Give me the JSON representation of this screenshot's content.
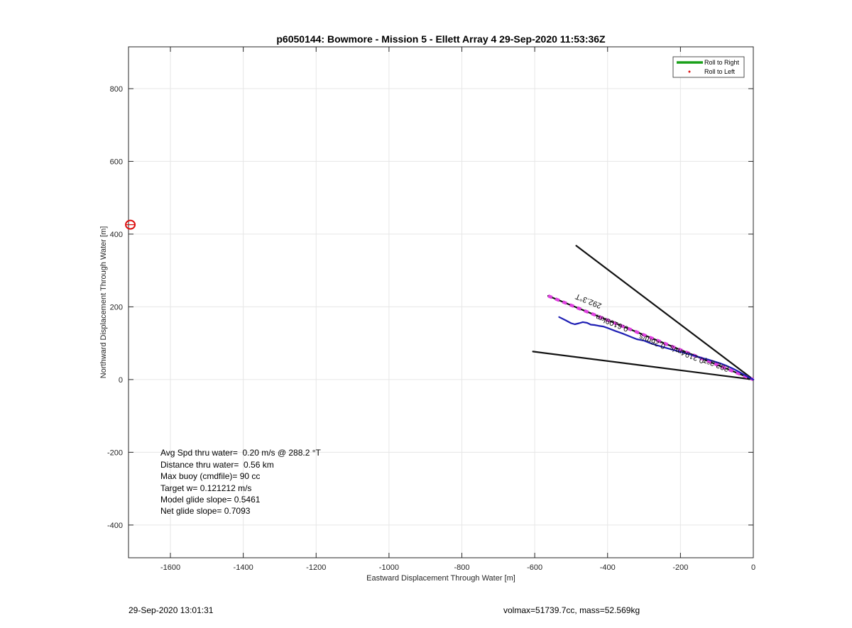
{
  "chart_data": {
    "type": "line",
    "title": "p6050144: Bowmore - Mission 5 - Ellett Array 4 29-Sep-2020 11:53:36Z",
    "xlabel": "Eastward Displacement Through Water [m]",
    "ylabel": "Northward Displacement Through Water [m]",
    "xlim": [
      -1715,
      0
    ],
    "ylim": [
      -490,
      915
    ],
    "xticks": [
      -1600,
      -1400,
      -1200,
      -1000,
      -800,
      -600,
      -400,
      -200,
      0
    ],
    "yticks": [
      -400,
      -200,
      0,
      200,
      400,
      600,
      800
    ],
    "grid": true,
    "legend": {
      "location": "top-right",
      "entries": [
        {
          "label": "Roll to Right",
          "color": "#1aa01a",
          "style": "line"
        },
        {
          "label": "Roll to Left",
          "color": "#e01010",
          "style": "dot"
        }
      ]
    },
    "series": [
      {
        "color": "#1f1fb4",
        "x": [
          -533,
          -515,
          -500,
          -490,
          -478,
          -468,
          -456,
          -446,
          -436,
          -425,
          -412,
          -398,
          -380,
          -360,
          -340,
          -320,
          -300,
          -282,
          -264,
          -246,
          -228,
          -210,
          -192,
          -174,
          -156,
          -140,
          -124,
          -108,
          -92,
          -76,
          -60,
          -44,
          -28,
          -14,
          0
        ],
        "y": [
          172,
          163,
          155,
          152,
          155,
          158,
          156,
          151,
          150,
          148,
          146,
          141,
          134,
          127,
          119,
          111,
          107,
          100,
          94,
          89,
          84,
          79,
          74,
          69,
          64,
          59,
          55,
          50,
          45,
          39,
          32,
          24,
          15,
          7,
          0
        ]
      },
      {
        "color": "#e040e0",
        "dashed": true,
        "x": [
          -563,
          0
        ],
        "y": [
          230,
          0
        ]
      },
      {
        "color": "#111111",
        "x": [
          -563,
          0
        ],
        "y": [
          230,
          0
        ]
      },
      {
        "color": "#111111",
        "x": [
          -486,
          0
        ],
        "y": [
          368,
          0
        ]
      },
      {
        "color": "#111111",
        "x": [
          -605,
          0
        ],
        "y": [
          77,
          0
        ]
      }
    ],
    "markers": [
      {
        "shape": "circle",
        "color": "#dd1111",
        "x": -1710,
        "y": 426
      }
    ],
    "track_labels": [
      {
        "text": "292.3°T",
        "x": -450,
        "y": 222,
        "angle": 202
      },
      {
        "text": "0.6109km",
        "x": -385,
        "y": 162,
        "angle": 202
      },
      {
        "text": "0.26m/s",
        "x": -275,
        "y": 111,
        "angle": 202
      },
      {
        "text": "0.2194m/s",
        "x": -180,
        "y": 76,
        "angle": 202
      },
      {
        "text": "292.3°T",
        "x": -100,
        "y": 48,
        "angle": 202
      }
    ],
    "annotations": [
      "Avg Spd thru water=  0.20 m/s @ 288.2 °T",
      "Distance thru water=  0.56 km",
      "Max buoy (cmdfile)= 90 cc",
      "Target w= 0.121212 m/s",
      "Model glide slope= 0.5461",
      "Net glide slope= 0.7093"
    ]
  },
  "footer": {
    "timestamp": "29-Sep-2020 13:01:31",
    "stats": "volmax=51739.7cc, mass=52.569kg"
  }
}
